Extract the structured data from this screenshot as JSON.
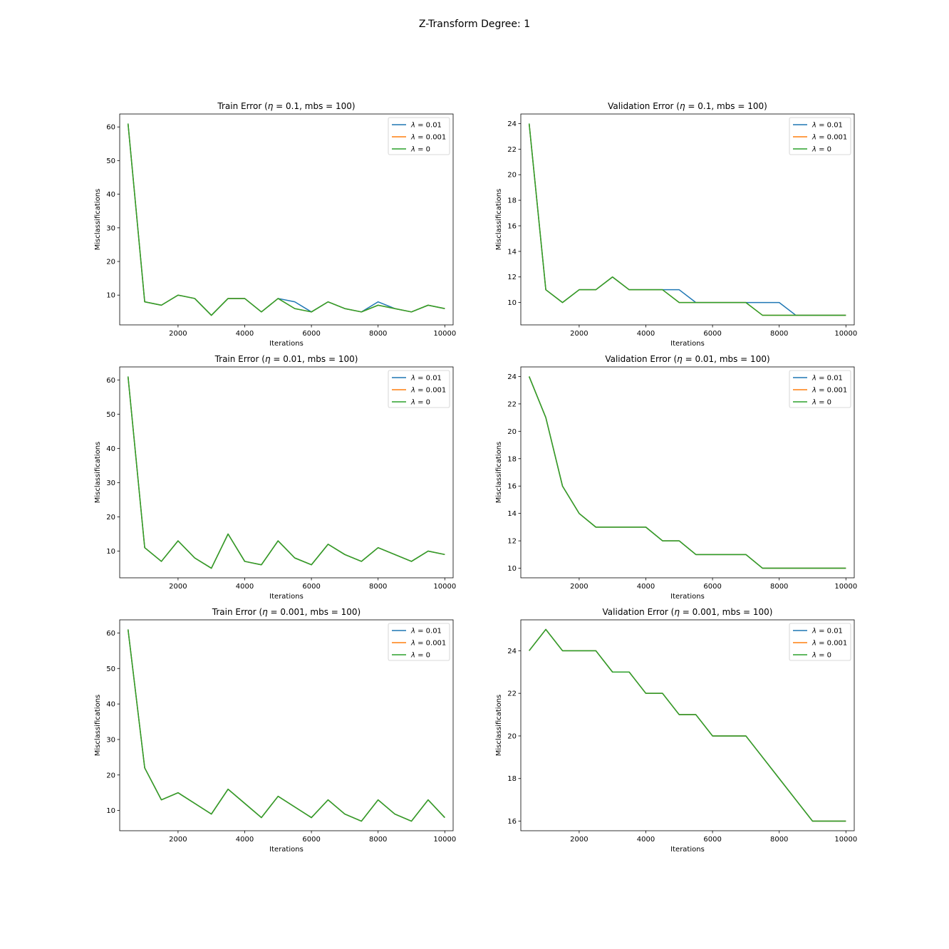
{
  "figure": {
    "title": "Z-Transform Degree: 1"
  },
  "chart_data": [
    {
      "type": "line",
      "title_prefix": "Train Error (",
      "title_symbol": "η",
      "title_suffix": " = 0.1, mbs = 100)",
      "xlabel": "Iterations",
      "ylabel": "Misclassifications",
      "xlim": [
        250,
        10250
      ],
      "ylim": [
        1.15,
        63.85
      ],
      "xticks": [
        2000,
        4000,
        6000,
        8000,
        10000
      ],
      "yticks": [
        10,
        20,
        30,
        40,
        50,
        60
      ],
      "legend": "top-right",
      "x": [
        500,
        1000,
        1500,
        2000,
        2500,
        3000,
        3500,
        4000,
        4500,
        5000,
        5500,
        6000,
        6500,
        7000,
        7500,
        8000,
        8500,
        9000,
        9500,
        10000
      ],
      "series": [
        {
          "name": "λ = 0.01",
          "label_symbol": "λ",
          "label_rest": " = 0.01",
          "color": "#1f77b4",
          "values": [
            61,
            8,
            7,
            10,
            9,
            4,
            9,
            9,
            5,
            9,
            8,
            5,
            8,
            6,
            5,
            8,
            6,
            5,
            7,
            6
          ]
        },
        {
          "name": "λ = 0.001",
          "label_symbol": "λ",
          "label_rest": " = 0.001",
          "color": "#ff7f0e",
          "values": [
            61,
            8,
            7,
            10,
            9,
            4,
            9,
            9,
            5,
            9,
            6,
            5,
            8,
            6,
            5,
            7,
            6,
            5,
            7,
            6
          ]
        },
        {
          "name": "λ = 0",
          "label_symbol": "λ",
          "label_rest": " = 0",
          "color": "#2ca02c",
          "values": [
            61,
            8,
            7,
            10,
            9,
            4,
            9,
            9,
            5,
            9,
            6,
            5,
            8,
            6,
            5,
            7,
            6,
            5,
            7,
            6
          ]
        }
      ]
    },
    {
      "type": "line",
      "title_prefix": "Validation Error (",
      "title_symbol": "η",
      "title_suffix": " = 0.1, mbs = 100)",
      "xlabel": "Iterations",
      "ylabel": "Misclassifications",
      "xlim": [
        250,
        10250
      ],
      "ylim": [
        8.25,
        24.75
      ],
      "xticks": [
        2000,
        4000,
        6000,
        8000,
        10000
      ],
      "yticks": [
        10,
        12,
        14,
        16,
        18,
        20,
        22,
        24
      ],
      "legend": "top-right",
      "x": [
        500,
        1000,
        1500,
        2000,
        2500,
        3000,
        3500,
        4000,
        4500,
        5000,
        5500,
        6000,
        6500,
        7000,
        7500,
        8000,
        8500,
        9000,
        9500,
        10000
      ],
      "series": [
        {
          "name": "λ = 0.01",
          "label_symbol": "λ",
          "label_rest": " = 0.01",
          "color": "#1f77b4",
          "values": [
            24,
            11,
            10,
            11,
            11,
            12,
            11,
            11,
            11,
            11,
            10,
            10,
            10,
            10,
            10,
            10,
            9,
            9,
            9,
            9
          ]
        },
        {
          "name": "λ = 0.001",
          "label_symbol": "λ",
          "label_rest": " = 0.001",
          "color": "#ff7f0e",
          "values": [
            24,
            11,
            10,
            11,
            11,
            12,
            11,
            11,
            11,
            10,
            10,
            10,
            10,
            10,
            9,
            9,
            9,
            9,
            9,
            9
          ]
        },
        {
          "name": "λ = 0",
          "label_symbol": "λ",
          "label_rest": " = 0",
          "color": "#2ca02c",
          "values": [
            24,
            11,
            10,
            11,
            11,
            12,
            11,
            11,
            11,
            10,
            10,
            10,
            10,
            10,
            9,
            9,
            9,
            9,
            9,
            9
          ]
        }
      ]
    },
    {
      "type": "line",
      "title_prefix": "Train Error (",
      "title_symbol": "η",
      "title_suffix": " = 0.01, mbs = 100)",
      "xlabel": "Iterations",
      "ylabel": "Misclassifications",
      "xlim": [
        250,
        10250
      ],
      "ylim": [
        2.2,
        63.8
      ],
      "xticks": [
        2000,
        4000,
        6000,
        8000,
        10000
      ],
      "yticks": [
        10,
        20,
        30,
        40,
        50,
        60
      ],
      "legend": "top-right",
      "x": [
        500,
        1000,
        1500,
        2000,
        2500,
        3000,
        3500,
        4000,
        4500,
        5000,
        5500,
        6000,
        6500,
        7000,
        7500,
        8000,
        8500,
        9000,
        9500,
        10000
      ],
      "series": [
        {
          "name": "λ = 0.01",
          "label_symbol": "λ",
          "label_rest": " = 0.01",
          "color": "#1f77b4",
          "values": [
            61,
            11,
            7,
            13,
            8,
            5,
            15,
            7,
            6,
            13,
            8,
            6,
            12,
            9,
            7,
            11,
            9,
            7,
            10,
            9
          ]
        },
        {
          "name": "λ = 0.001",
          "label_symbol": "λ",
          "label_rest": " = 0.001",
          "color": "#ff7f0e",
          "values": [
            61,
            11,
            7,
            13,
            8,
            5,
            15,
            7,
            6,
            13,
            8,
            6,
            12,
            9,
            7,
            11,
            9,
            7,
            10,
            9
          ]
        },
        {
          "name": "λ = 0",
          "label_symbol": "λ",
          "label_rest": " = 0",
          "color": "#2ca02c",
          "values": [
            61,
            11,
            7,
            13,
            8,
            5,
            15,
            7,
            6,
            13,
            8,
            6,
            12,
            9,
            7,
            11,
            9,
            7,
            10,
            9
          ]
        }
      ]
    },
    {
      "type": "line",
      "title_prefix": "Validation Error (",
      "title_symbol": "η",
      "title_suffix": " = 0.01, mbs = 100)",
      "xlabel": "Iterations",
      "ylabel": "Misclassifications",
      "xlim": [
        250,
        10250
      ],
      "ylim": [
        9.3,
        24.7
      ],
      "xticks": [
        2000,
        4000,
        6000,
        8000,
        10000
      ],
      "yticks": [
        10,
        12,
        14,
        16,
        18,
        20,
        22,
        24
      ],
      "legend": "top-right",
      "x": [
        500,
        1000,
        1500,
        2000,
        2500,
        3000,
        3500,
        4000,
        4500,
        5000,
        5500,
        6000,
        6500,
        7000,
        7500,
        8000,
        8500,
        9000,
        9500,
        10000
      ],
      "series": [
        {
          "name": "λ = 0.01",
          "label_symbol": "λ",
          "label_rest": " = 0.01",
          "color": "#1f77b4",
          "values": [
            24,
            21,
            16,
            14,
            13,
            13,
            13,
            13,
            12,
            12,
            11,
            11,
            11,
            11,
            10,
            10,
            10,
            10,
            10,
            10
          ]
        },
        {
          "name": "λ = 0.001",
          "label_symbol": "λ",
          "label_rest": " = 0.001",
          "color": "#ff7f0e",
          "values": [
            24,
            21,
            16,
            14,
            13,
            13,
            13,
            13,
            12,
            12,
            11,
            11,
            11,
            11,
            10,
            10,
            10,
            10,
            10,
            10
          ]
        },
        {
          "name": "λ = 0",
          "label_symbol": "λ",
          "label_rest": " = 0",
          "color": "#2ca02c",
          "values": [
            24,
            21,
            16,
            14,
            13,
            13,
            13,
            13,
            12,
            12,
            11,
            11,
            11,
            11,
            10,
            10,
            10,
            10,
            10,
            10
          ]
        }
      ]
    },
    {
      "type": "line",
      "title_prefix": "Train Error (",
      "title_symbol": "η",
      "title_suffix": " = 0.001, mbs = 100)",
      "xlabel": "Iterations",
      "ylabel": "Misclassifications",
      "xlim": [
        250,
        10250
      ],
      "ylim": [
        4.3,
        63.7
      ],
      "xticks": [
        2000,
        4000,
        6000,
        8000,
        10000
      ],
      "yticks": [
        10,
        20,
        30,
        40,
        50,
        60
      ],
      "legend": "top-right",
      "x": [
        500,
        1000,
        1500,
        2000,
        2500,
        3000,
        3500,
        4000,
        4500,
        5000,
        5500,
        6000,
        6500,
        7000,
        7500,
        8000,
        8500,
        9000,
        9500,
        10000
      ],
      "series": [
        {
          "name": "λ = 0.01",
          "label_symbol": "λ",
          "label_rest": " = 0.01",
          "color": "#1f77b4",
          "values": [
            61,
            22,
            13,
            15,
            12,
            9,
            16,
            12,
            8,
            14,
            11,
            8,
            13,
            9,
            7,
            13,
            9,
            7,
            13,
            8
          ]
        },
        {
          "name": "λ = 0.001",
          "label_symbol": "λ",
          "label_rest": " = 0.001",
          "color": "#ff7f0e",
          "values": [
            61,
            22,
            13,
            15,
            12,
            9,
            16,
            12,
            8,
            14,
            11,
            8,
            13,
            9,
            7,
            13,
            9,
            7,
            13,
            8
          ]
        },
        {
          "name": "λ = 0",
          "label_symbol": "λ",
          "label_rest": " = 0",
          "color": "#2ca02c",
          "values": [
            61,
            22,
            13,
            15,
            12,
            9,
            16,
            12,
            8,
            14,
            11,
            8,
            13,
            9,
            7,
            13,
            9,
            7,
            13,
            8
          ]
        }
      ]
    },
    {
      "type": "line",
      "title_prefix": "Validation Error (",
      "title_symbol": "η",
      "title_suffix": " = 0.001, mbs = 100)",
      "xlabel": "Iterations",
      "ylabel": "Misclassifications",
      "xlim": [
        250,
        10250
      ],
      "ylim": [
        15.55,
        25.45
      ],
      "xticks": [
        2000,
        4000,
        6000,
        8000,
        10000
      ],
      "yticks": [
        16,
        18,
        20,
        22,
        24
      ],
      "legend": "top-right",
      "x": [
        500,
        1000,
        1500,
        2000,
        2500,
        3000,
        3500,
        4000,
        4500,
        5000,
        5500,
        6000,
        6500,
        7000,
        7500,
        8000,
        8500,
        9000,
        9500,
        10000
      ],
      "series": [
        {
          "name": "λ = 0.01",
          "label_symbol": "λ",
          "label_rest": " = 0.01",
          "color": "#1f77b4",
          "values": [
            24,
            25,
            24,
            24,
            24,
            23,
            23,
            22,
            22,
            21,
            21,
            20,
            20,
            20,
            19,
            18,
            17,
            16,
            16,
            16
          ]
        },
        {
          "name": "λ = 0.001",
          "label_symbol": "λ",
          "label_rest": " = 0.001",
          "color": "#ff7f0e",
          "values": [
            24,
            25,
            24,
            24,
            24,
            23,
            23,
            22,
            22,
            21,
            21,
            20,
            20,
            20,
            19,
            18,
            17,
            16,
            16,
            16
          ]
        },
        {
          "name": "λ = 0",
          "label_symbol": "λ",
          "label_rest": " = 0",
          "color": "#2ca02c",
          "values": [
            24,
            25,
            24,
            24,
            24,
            23,
            23,
            22,
            22,
            21,
            21,
            20,
            20,
            20,
            19,
            18,
            17,
            16,
            16,
            16
          ]
        }
      ]
    }
  ]
}
